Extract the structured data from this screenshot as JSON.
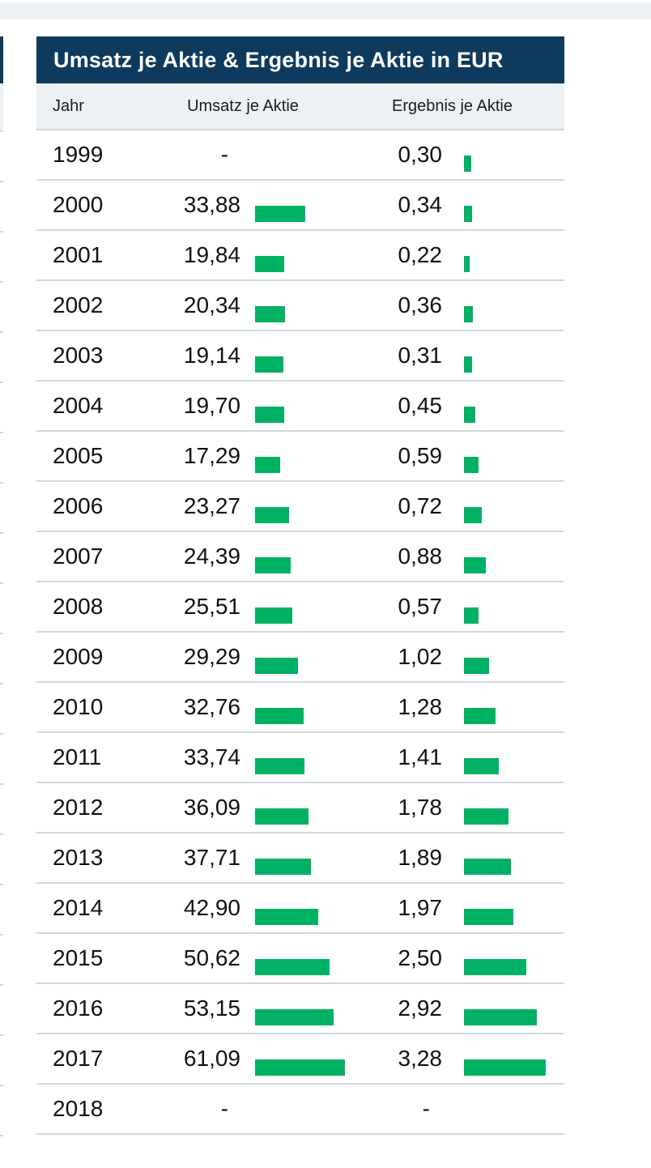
{
  "page": {
    "background": "#ffffff"
  },
  "colors": {
    "navy_header": "#0e3a5d",
    "bar_green": "#00b164",
    "subheader_bg": "#edf1f4",
    "separator": "#cfd9e0",
    "title_text": "#ffffff",
    "body_text": "#111111"
  },
  "header": {
    "title": "Umsatz je Aktie & Ergebnis je Aktie in EUR"
  },
  "chart_data": {
    "type": "table",
    "title": "Umsatz je Aktie & Ergebnis je Aktie in EUR",
    "unit": "EUR",
    "columns": [
      "Jahr",
      "Umsatz je Aktie",
      "Ergebnis je Aktie"
    ],
    "empty_value": "-",
    "bar_color": "#00b164",
    "umsatz_axis_max": 61.09,
    "ergebnis_axis_max": 3.28,
    "rows": [
      {
        "jahr": "1999",
        "umsatz": null,
        "umsatz_label": "-",
        "ergebnis": 0.3,
        "ergebnis_label": "0,30"
      },
      {
        "jahr": "2000",
        "umsatz": 33.88,
        "umsatz_label": "33,88",
        "ergebnis": 0.34,
        "ergebnis_label": "0,34"
      },
      {
        "jahr": "2001",
        "umsatz": 19.84,
        "umsatz_label": "19,84",
        "ergebnis": 0.22,
        "ergebnis_label": "0,22"
      },
      {
        "jahr": "2002",
        "umsatz": 20.34,
        "umsatz_label": "20,34",
        "ergebnis": 0.36,
        "ergebnis_label": "0,36"
      },
      {
        "jahr": "2003",
        "umsatz": 19.14,
        "umsatz_label": "19,14",
        "ergebnis": 0.31,
        "ergebnis_label": "0,31"
      },
      {
        "jahr": "2004",
        "umsatz": 19.7,
        "umsatz_label": "19,70",
        "ergebnis": 0.45,
        "ergebnis_label": "0,45"
      },
      {
        "jahr": "2005",
        "umsatz": 17.29,
        "umsatz_label": "17,29",
        "ergebnis": 0.59,
        "ergebnis_label": "0,59"
      },
      {
        "jahr": "2006",
        "umsatz": 23.27,
        "umsatz_label": "23,27",
        "ergebnis": 0.72,
        "ergebnis_label": "0,72"
      },
      {
        "jahr": "2007",
        "umsatz": 24.39,
        "umsatz_label": "24,39",
        "ergebnis": 0.88,
        "ergebnis_label": "0,88"
      },
      {
        "jahr": "2008",
        "umsatz": 25.51,
        "umsatz_label": "25,51",
        "ergebnis": 0.57,
        "ergebnis_label": "0,57"
      },
      {
        "jahr": "2009",
        "umsatz": 29.29,
        "umsatz_label": "29,29",
        "ergebnis": 1.02,
        "ergebnis_label": "1,02"
      },
      {
        "jahr": "2010",
        "umsatz": 32.76,
        "umsatz_label": "32,76",
        "ergebnis": 1.28,
        "ergebnis_label": "1,28"
      },
      {
        "jahr": "2011",
        "umsatz": 33.74,
        "umsatz_label": "33,74",
        "ergebnis": 1.41,
        "ergebnis_label": "1,41"
      },
      {
        "jahr": "2012",
        "umsatz": 36.09,
        "umsatz_label": "36,09",
        "ergebnis": 1.78,
        "ergebnis_label": "1,78"
      },
      {
        "jahr": "2013",
        "umsatz": 37.71,
        "umsatz_label": "37,71",
        "ergebnis": 1.89,
        "ergebnis_label": "1,89"
      },
      {
        "jahr": "2014",
        "umsatz": 42.9,
        "umsatz_label": "42,90",
        "ergebnis": 1.97,
        "ergebnis_label": "1,97"
      },
      {
        "jahr": "2015",
        "umsatz": 50.62,
        "umsatz_label": "50,62",
        "ergebnis": 2.5,
        "ergebnis_label": "2,50"
      },
      {
        "jahr": "2016",
        "umsatz": 53.15,
        "umsatz_label": "53,15",
        "ergebnis": 2.92,
        "ergebnis_label": "2,92"
      },
      {
        "jahr": "2017",
        "umsatz": 61.09,
        "umsatz_label": "61,09",
        "ergebnis": 3.28,
        "ergebnis_label": "3,28"
      },
      {
        "jahr": "2018",
        "umsatz": null,
        "umsatz_label": "-",
        "ergebnis": null,
        "ergebnis_label": "-"
      }
    ]
  }
}
